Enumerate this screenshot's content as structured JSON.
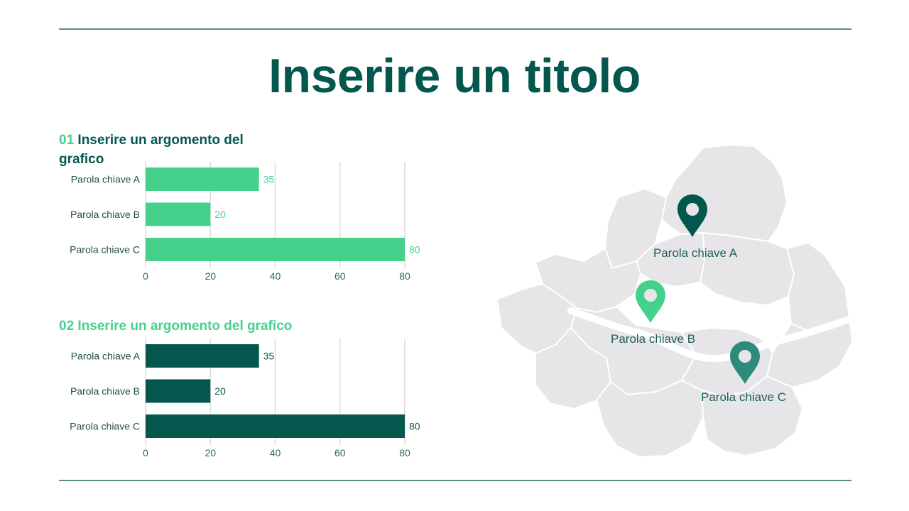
{
  "title": "Inserire un titolo",
  "section1": {
    "num": "01",
    "heading": "Inserire un argomento del grafico"
  },
  "section2": {
    "heading": "02 Inserire un argomento del grafico"
  },
  "chart_data": [
    {
      "type": "bar",
      "orientation": "horizontal",
      "categories": [
        "Parola chiave A",
        "Parola chiave B",
        "Parola chiave C"
      ],
      "values": [
        35,
        20,
        80
      ],
      "xlim": [
        0,
        80
      ],
      "xticks": [
        0,
        20,
        40,
        60,
        80
      ],
      "grid": true,
      "color": "#45d18b",
      "label_color": "#45d18b"
    },
    {
      "type": "bar",
      "orientation": "horizontal",
      "categories": [
        "Parola chiave A",
        "Parola chiave B",
        "Parola chiave C"
      ],
      "values": [
        35,
        20,
        80
      ],
      "xlim": [
        0,
        80
      ],
      "xticks": [
        0,
        20,
        40,
        60,
        80
      ],
      "grid": true,
      "color": "#04574c",
      "label_color": "#04574c"
    }
  ],
  "map": {
    "pins": [
      {
        "label": "Parola chiave A",
        "color": "#04574c",
        "icon": "map-pin-icon"
      },
      {
        "label": "Parola chiave B",
        "color": "#45d18b",
        "icon": "map-pin-icon"
      },
      {
        "label": "Parola chiave C",
        "color": "#2d8a7c",
        "icon": "map-pin-icon"
      }
    ]
  }
}
